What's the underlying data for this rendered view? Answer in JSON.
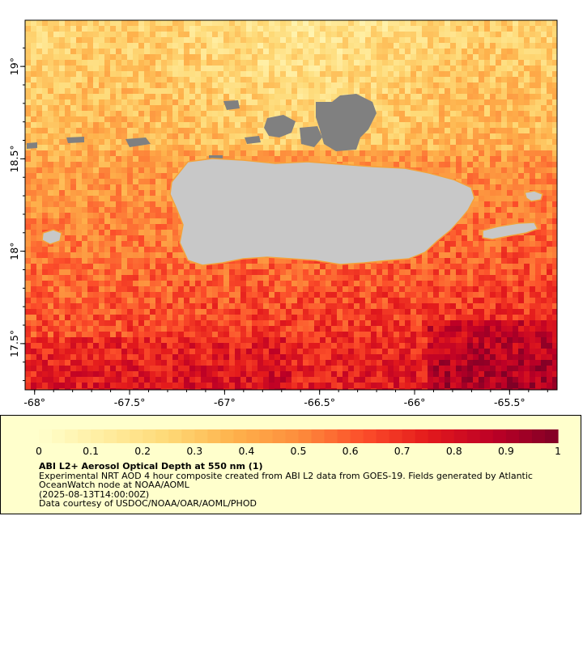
{
  "map": {
    "lon_range": [
      -68.05,
      -65.25
    ],
    "lat_range": [
      17.25,
      19.25
    ],
    "lon_ticks": [
      -68,
      -67.5,
      -67,
      -66.5,
      -66,
      -65.5
    ],
    "lon_tick_labels": [
      "-68°",
      "-67.5°",
      "-67°",
      "-66.5°",
      "-66°",
      "-65.5°"
    ],
    "lat_ticks": [
      19,
      18.5,
      18,
      17.5
    ],
    "lat_tick_labels": [
      "19°",
      "18.5°",
      "18°",
      "17.5°"
    ],
    "colors": {
      "land": "#c8c8c8",
      "no_data": "#808080",
      "frame": "#000000"
    },
    "islands": [
      "Puerto Rico",
      "Vieques",
      "Culebra",
      "Mona"
    ]
  },
  "colorbar": {
    "range": [
      0,
      1
    ],
    "tick_values": [
      0,
      0.1,
      0.2,
      0.3,
      0.4,
      0.5,
      0.6,
      0.7,
      0.8,
      0.9,
      1
    ],
    "tick_labels": [
      "0",
      "0.1",
      "0.2",
      "0.3",
      "0.4",
      "0.5",
      "0.6",
      "0.7",
      "0.8",
      "0.9",
      "1"
    ],
    "colormap": [
      "#ffffcc",
      "#ffeda0",
      "#fed976",
      "#feb24c",
      "#fd8d3c",
      "#fc4e2a",
      "#e31a1c",
      "#bd0026",
      "#800026"
    ]
  },
  "caption": {
    "title": "ABI L2+ Aerosol Optical Depth at 550 nm (1)",
    "line1": "Experimental NRT AOD 4 hour composite created from ABI L2 data from GOES-19. Fields generated by Atlantic",
    "line2": "OceanWatch node at NOAA/AOML",
    "line3": "(2025-08-13T14:00:00Z)",
    "line4": "Data courtesy of USDOC/NOAA/OAR/AOML/PHOD"
  }
}
